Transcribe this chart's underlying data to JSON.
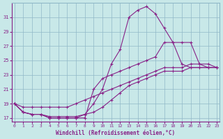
{
  "xlabel": "Windchill (Refroidissement éolien,°C)",
  "bg_color": "#c8e8e8",
  "grid_color": "#90b8c8",
  "line_color": "#882288",
  "yticks": [
    17,
    19,
    21,
    23,
    25,
    27,
    29,
    31
  ],
  "xticks": [
    0,
    1,
    2,
    3,
    4,
    5,
    6,
    7,
    8,
    9,
    10,
    11,
    12,
    13,
    14,
    15,
    16,
    17,
    18,
    19,
    20,
    21,
    22,
    23
  ],
  "xlim": [
    -0.3,
    23.3
  ],
  "ylim": [
    16.5,
    33.0
  ],
  "series": [
    {
      "x": [
        0,
        1,
        2,
        3,
        4,
        5,
        6,
        7,
        8,
        9,
        10,
        11,
        12,
        13,
        14,
        15,
        16,
        17,
        18,
        19,
        20,
        21,
        22,
        23
      ],
      "y": [
        19.0,
        17.8,
        17.5,
        17.5,
        17.0,
        17.0,
        17.0,
        17.0,
        17.5,
        19.0,
        21.0,
        24.5,
        26.5,
        31.0,
        32.0,
        32.5,
        31.5,
        29.5,
        27.5,
        24.5,
        24.0,
        24.0,
        24.0,
        24.0
      ]
    },
    {
      "x": [
        0,
        1,
        2,
        3,
        4,
        5,
        6,
        7,
        8,
        9,
        10,
        11,
        12,
        13,
        14,
        15,
        16,
        17,
        18,
        19,
        20,
        21,
        22,
        23
      ],
      "y": [
        19.0,
        18.5,
        18.5,
        18.5,
        18.5,
        18.5,
        18.5,
        19.0,
        19.5,
        20.0,
        20.5,
        21.0,
        21.5,
        22.0,
        22.5,
        23.0,
        23.5,
        24.0,
        24.0,
        24.0,
        24.5,
        24.5,
        24.5,
        24.0
      ]
    },
    {
      "x": [
        0,
        1,
        2,
        3,
        4,
        5,
        6,
        7,
        8,
        9,
        10,
        11,
        12,
        13,
        14,
        15,
        16,
        17,
        18,
        19,
        20,
        21,
        22,
        23
      ],
      "y": [
        19.0,
        17.8,
        17.5,
        17.5,
        17.2,
        17.2,
        17.2,
        17.2,
        17.5,
        17.8,
        18.5,
        19.5,
        20.5,
        21.5,
        22.0,
        22.5,
        23.0,
        23.5,
        23.5,
        23.5,
        24.0,
        24.0,
        24.0,
        24.0
      ]
    },
    {
      "x": [
        0,
        1,
        2,
        3,
        4,
        5,
        6,
        7,
        8,
        9,
        10,
        11,
        12,
        13,
        14,
        15,
        16,
        17,
        18,
        19,
        20,
        21,
        22,
        23
      ],
      "y": [
        19.0,
        17.8,
        17.5,
        17.5,
        17.0,
        17.0,
        17.0,
        17.0,
        17.0,
        21.0,
        22.5,
        23.0,
        23.5,
        24.0,
        24.5,
        25.0,
        25.5,
        27.5,
        27.5,
        27.5,
        27.5,
        24.5,
        24.0,
        24.0
      ]
    }
  ]
}
